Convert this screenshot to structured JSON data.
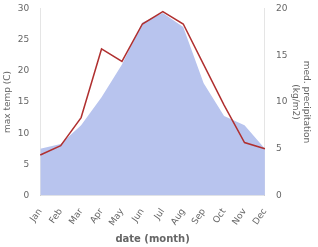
{
  "chart_data": {
    "type": "line",
    "categories": [
      "Jan",
      "Feb",
      "Mar",
      "Apr",
      "May",
      "Jun",
      "Jul",
      "Aug",
      "Sep",
      "Oct",
      "Nov",
      "Dec"
    ],
    "xlabel": "date (month)",
    "ylabel": "max temp (C)",
    "y2label": "med. precipitation\n(kg/m2)",
    "series": [
      {
        "type": "area",
        "color": "#b8c4ee",
        "axis": "y2",
        "values": [
          5.0,
          5.5,
          7.5,
          10.5,
          14.0,
          18.5,
          19.5,
          18.0,
          12.0,
          8.5,
          7.5,
          5.0
        ]
      },
      {
        "type": "line",
        "color": "#b03030",
        "values": [
          6.5,
          8.0,
          12.5,
          23.5,
          21.5,
          27.5,
          29.5,
          27.5,
          21.0,
          14.5,
          8.5,
          7.5
        ]
      }
    ],
    "ylim": [
      0,
      30
    ],
    "yticks": [
      0,
      5,
      10,
      15,
      20,
      25,
      30
    ],
    "y2lim": [
      0,
      20
    ],
    "y2ticks": [
      0,
      5,
      10,
      15,
      20
    ],
    "grid": false
  }
}
